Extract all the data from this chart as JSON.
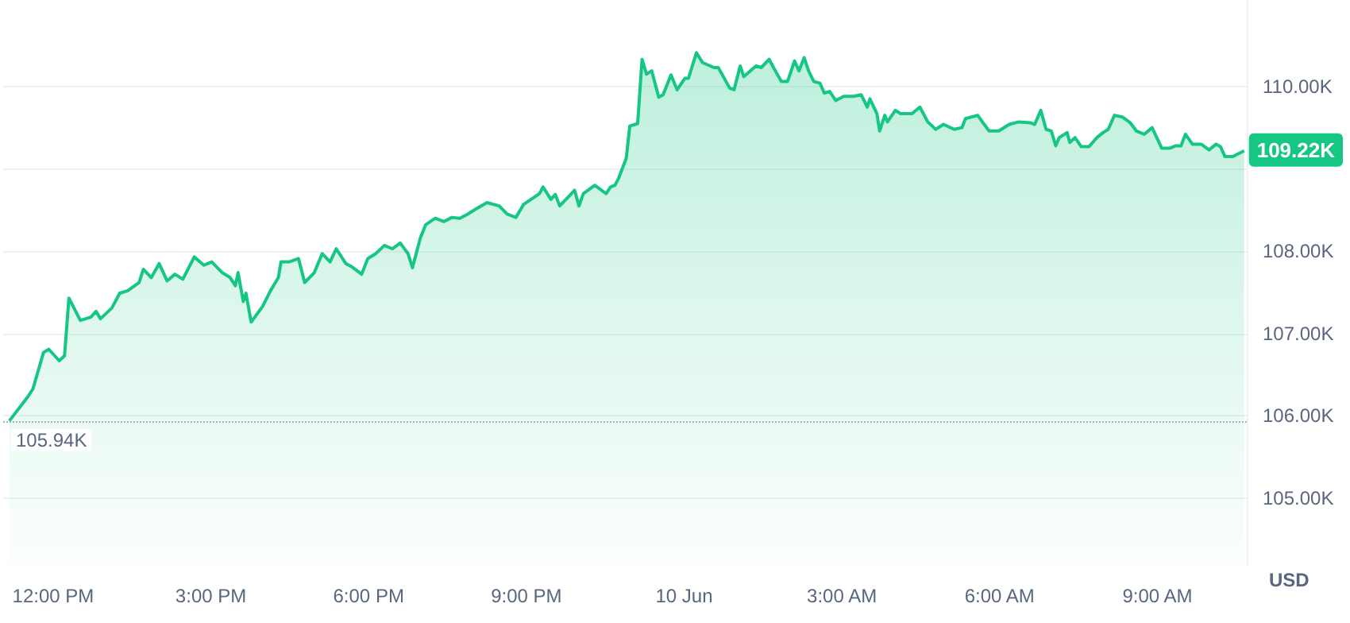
{
  "chart_data": {
    "type": "area",
    "ylabel": "USD",
    "grid": "y",
    "marker": "none",
    "x": [
      "--06-09T11:10",
      "--06-09T11:31",
      "--06-09T11:37",
      "--06-09T11:49",
      "--06-09T11:55",
      "--06-09T12:07",
      "--06-09T12:13",
      "--06-09T12:18",
      "--06-09T12:31",
      "--06-09T12:43",
      "--06-09T12:49",
      "--06-09T12:54",
      "--06-09T13:07",
      "--06-09T13:16",
      "--06-09T13:25",
      "--06-09T13:38",
      "--06-09T13:43",
      "--06-09T13:52",
      "--06-09T14:01",
      "--06-09T14:10",
      "--06-09T14:19",
      "--06-09T14:28",
      "--06-09T14:41",
      "--06-09T14:52",
      "--06-09T15:01",
      "--06-09T15:13",
      "--06-09T15:22",
      "--06-09T15:28",
      "--06-09T15:31",
      "--06-09T15:37",
      "--06-09T15:40",
      "--06-09T15:46",
      "--06-09T15:59",
      "--06-09T16:08",
      "--06-09T16:17",
      "--06-09T16:20",
      "--06-09T16:29",
      "--06-09T16:40",
      "--06-09T16:47",
      "--06-09T16:58",
      "--06-09T17:07",
      "--06-09T17:16",
      "--06-09T17:23",
      "--06-09T17:34",
      "--06-09T17:41",
      "--06-09T17:52",
      "--06-09T17:59",
      "--06-09T18:08",
      "--06-09T18:18",
      "--06-09T18:27",
      "--06-09T18:36",
      "--06-09T18:45",
      "--06-09T18:50",
      "--06-09T18:59",
      "--06-09T19:05",
      "--06-09T19:16",
      "--06-09T19:26",
      "--06-09T19:35",
      "--06-09T19:44",
      "--06-09T19:53",
      "--06-09T20:02",
      "--06-09T20:15",
      "--06-09T20:29",
      "--06-09T20:38",
      "--06-09T20:48",
      "--06-09T20:57",
      "--06-09T21:15",
      "--06-09T21:19",
      "--06-09T21:28",
      "--06-09T21:33",
      "--06-09T21:38",
      "--06-09T21:47",
      "--06-09T21:55",
      "--06-09T22:00",
      "--06-09T22:05",
      "--06-09T22:18",
      "--06-09T22:31",
      "--06-09T22:36",
      "--06-09T22:41",
      "--06-09T22:45",
      "--06-09T22:54",
      "--06-09T22:58",
      "--06-09T23:07",
      "--06-09T23:12",
      "--06-09T23:17",
      "--06-09T23:23",
      "--06-09T23:31",
      "--06-09T23:36",
      "--06-09T23:45",
      "--06-09T23:52",
      "--06-10T00:01",
      "--06-10T00:05",
      "--06-10T00:14",
      "--06-10T00:21",
      "--06-10T00:34",
      "--06-10T00:39",
      "--06-10T00:52",
      "--06-10T00:57",
      "--06-10T01:04",
      "--06-10T01:08",
      "--06-10T01:22",
      "--06-10T01:28",
      "--06-10T01:37",
      "--06-10T01:42",
      "--06-10T01:51",
      "--06-10T01:58",
      "--06-10T02:06",
      "--06-10T02:11",
      "--06-10T02:17",
      "--06-10T02:22",
      "--06-10T02:28",
      "--06-10T02:35",
      "--06-10T02:40",
      "--06-10T02:46",
      "--06-10T02:53",
      "--06-10T03:02",
      "--06-10T03:13",
      "--06-10T03:22",
      "--06-10T03:29",
      "--06-10T03:32",
      "--06-10T03:40",
      "--06-10T03:43",
      "--06-10T03:49",
      "--06-10T03:52",
      "--06-10T04:01",
      "--06-10T04:07",
      "--06-10T04:20",
      "--06-10T04:29",
      "--06-10T04:38",
      "--06-10T04:47",
      "--06-10T04:56",
      "--06-10T05:08",
      "--06-10T05:17",
      "--06-10T05:21",
      "--06-10T05:35",
      "--06-10T05:41",
      "--06-10T05:48",
      "--06-10T05:59",
      "--06-10T06:11",
      "--06-10T06:22",
      "--06-10T06:35",
      "--06-10T06:40",
      "--06-10T06:47",
      "--06-10T06:53",
      "--06-10T06:59",
      "--06-10T07:04",
      "--06-10T07:08",
      "--06-10T07:17",
      "--06-10T07:20",
      "--06-10T07:26",
      "--06-10T07:33",
      "--06-10T07:42",
      "--06-10T07:51",
      "--06-10T07:58",
      "--06-10T08:04",
      "--06-10T08:11",
      "--06-10T08:20",
      "--06-10T08:29",
      "--06-10T08:36",
      "--06-10T08:45",
      "--06-10T08:54",
      "--06-10T09:05",
      "--06-10T09:14",
      "--06-10T09:21",
      "--06-10T09:27",
      "--06-10T09:32",
      "--06-10T09:40",
      "--06-10T09:50",
      "--06-10T09:59",
      "--06-10T10:07",
      "--06-10T10:12",
      "--06-10T10:17",
      "--06-10T10:26",
      "--06-10T10:39"
    ],
    "series": [
      {
        "color": "#16c784",
        "values": [
          105.94,
          106.23,
          106.33,
          106.77,
          106.81,
          106.67,
          106.73,
          107.43,
          107.16,
          107.2,
          107.27,
          107.18,
          107.31,
          107.49,
          107.52,
          107.62,
          107.78,
          107.68,
          107.85,
          107.64,
          107.72,
          107.66,
          107.93,
          107.83,
          107.87,
          107.74,
          107.68,
          107.58,
          107.74,
          107.39,
          107.49,
          107.14,
          107.33,
          107.52,
          107.68,
          107.87,
          107.87,
          107.91,
          107.62,
          107.74,
          107.97,
          107.87,
          108.03,
          107.85,
          107.81,
          107.72,
          107.91,
          107.97,
          108.07,
          108.03,
          108.1,
          107.97,
          107.8,
          108.16,
          108.32,
          108.4,
          108.36,
          108.41,
          108.4,
          108.45,
          108.51,
          108.59,
          108.55,
          108.45,
          108.41,
          108.57,
          108.7,
          108.78,
          108.63,
          108.69,
          108.55,
          108.65,
          108.74,
          108.55,
          108.7,
          108.8,
          108.7,
          108.78,
          108.8,
          108.88,
          109.13,
          109.52,
          109.55,
          110.33,
          110.15,
          110.19,
          109.87,
          109.9,
          110.14,
          109.96,
          110.1,
          110.1,
          110.41,
          110.29,
          110.23,
          110.23,
          109.98,
          109.96,
          110.25,
          110.12,
          110.25,
          110.23,
          110.33,
          110.23,
          110.06,
          110.06,
          110.31,
          110.19,
          110.35,
          110.19,
          110.06,
          110.04,
          109.92,
          109.94,
          109.83,
          109.88,
          109.88,
          109.9,
          109.75,
          109.85,
          109.67,
          109.46,
          109.65,
          109.57,
          109.71,
          109.67,
          109.67,
          109.75,
          109.57,
          109.48,
          109.54,
          109.48,
          109.5,
          109.61,
          109.65,
          109.56,
          109.46,
          109.46,
          109.54,
          109.57,
          109.56,
          109.54,
          109.71,
          109.48,
          109.46,
          109.28,
          109.38,
          109.44,
          109.32,
          109.38,
          109.27,
          109.27,
          109.38,
          109.44,
          109.48,
          109.65,
          109.63,
          109.56,
          109.46,
          109.42,
          109.5,
          109.25,
          109.25,
          109.28,
          109.28,
          109.42,
          109.3,
          109.3,
          109.23,
          109.3,
          109.27,
          109.15,
          109.15,
          109.22
        ]
      }
    ],
    "xlim": [
      "--06-09T11:03",
      "--06-10T10:42"
    ],
    "xticks": [
      {
        "value": "--06-09T12:00",
        "label": "12:00 PM"
      },
      {
        "value": "--06-09T15:00",
        "label": "3:00 PM"
      },
      {
        "value": "--06-09T18:00",
        "label": "6:00 PM"
      },
      {
        "value": "--06-09T21:00",
        "label": "9:00 PM"
      },
      {
        "value": "--06-10T00:00",
        "label": "10 Jun"
      },
      {
        "value": "--06-10T03:00",
        "label": "3:00 AM"
      },
      {
        "value": "--06-10T06:00",
        "label": "6:00 AM"
      },
      {
        "value": "--06-10T09:00",
        "label": "9:00 AM"
      }
    ],
    "ylim": [
      104.2,
      111.05
    ],
    "yticks": [
      {
        "value": 105,
        "label": "105.00K"
      },
      {
        "value": 106,
        "label": "106.00K"
      },
      {
        "value": 107,
        "label": "107.00K"
      },
      {
        "value": 108,
        "label": "108.00K"
      },
      {
        "value": 109,
        "label": null
      },
      {
        "value": 110,
        "label": "110.00K"
      }
    ],
    "ref_lines": [
      {
        "axis": "y",
        "value": 105.94,
        "label": "105.94K",
        "color": "#a6b0c3",
        "line_style": "dotted"
      }
    ],
    "annotations": [
      {
        "text": "109.22K",
        "x": "--06-10T10:39",
        "y": 109.22
      }
    ]
  }
}
